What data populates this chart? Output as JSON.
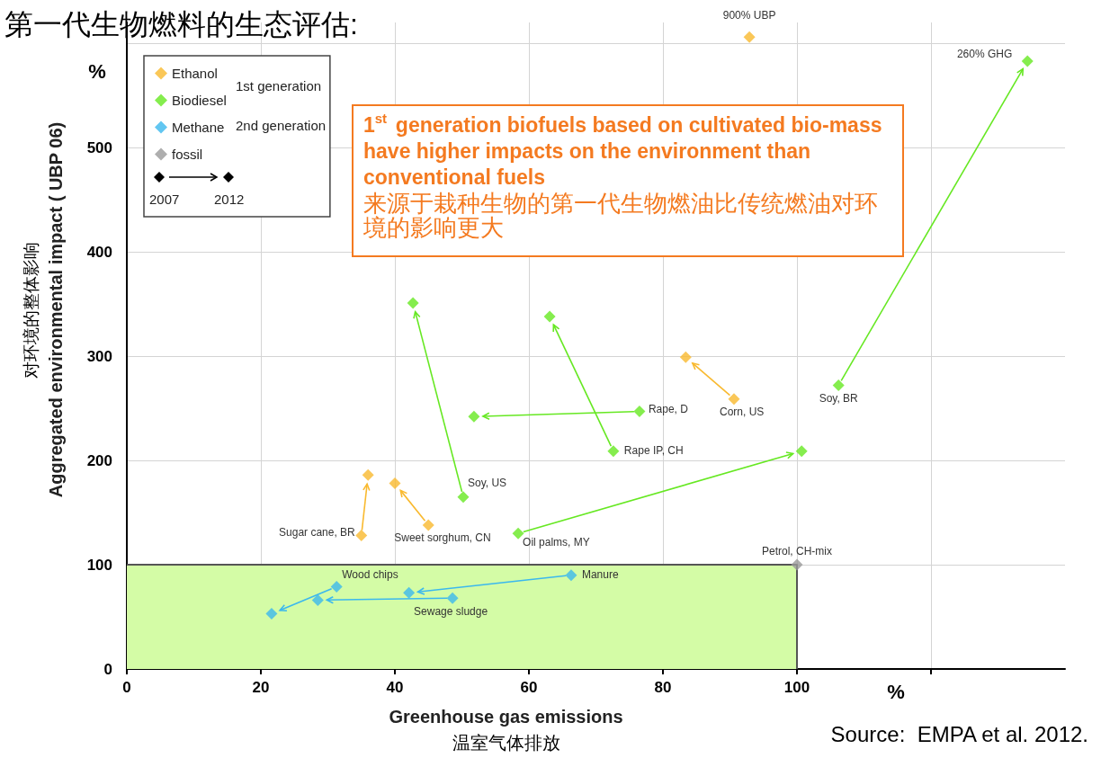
{
  "chart_data": {
    "type": "scatter",
    "title": "第一代生物燃料的生态评估:",
    "xlabel": "Greenhouse gas emissions\n温室气体排放",
    "ylabel": "对环境的整体影响\nAggregated environmental impact ( UBP 06)",
    "xlim": [
      0,
      140
    ],
    "xticks": [
      0,
      20,
      40,
      60,
      80,
      100,
      {
        "value": 120,
        "label": null
      }
    ],
    "ylim": [
      0,
      620
    ],
    "yticks": [
      0,
      100,
      200,
      300,
      400,
      500,
      {
        "value": 600,
        "label": null
      }
    ],
    "grid": true,
    "legend": "top left",
    "marker": "diamond",
    "series": [
      {
        "type": "area",
        "marker": "none",
        "color": "#d4fca6",
        "x": [
          0,
          100,
          100
        ],
        "values": [
          100,
          100,
          0
        ]
      },
      {
        "name": "Ethanol",
        "color": "#f9b92e",
        "x": [
          35.0,
          36.0,
          45.0,
          40.0,
          90.6,
          83.4,
          92.9
        ],
        "values": [
          128,
          186,
          138,
          178,
          259,
          299,
          606
        ]
      },
      {
        "name": "Biodiesel",
        "color": "#66e822",
        "x": [
          50.2,
          42.7,
          72.6,
          63.1,
          76.5,
          51.8,
          58.4,
          100.7,
          106.2,
          134.4
        ],
        "values": [
          165,
          351,
          209,
          338,
          247,
          242,
          130,
          209,
          272,
          583
        ]
      },
      {
        "name": "Methane",
        "color": "#3bb8ee",
        "x": [
          66.3,
          42.1,
          48.6,
          28.5,
          31.3,
          21.6
        ],
        "values": [
          90,
          73,
          68,
          66,
          79,
          53
        ]
      },
      {
        "name": "fossil",
        "color": "#9a9a9a",
        "x": [
          100
        ],
        "values": [
          100
        ]
      }
    ],
    "annotations": [
      "1$^{st}$ generation biofuels based on cultivated bio-mass have higher impacts on the environment than conventional fuels",
      "来源于栽种生物的第一代生物燃油比传统燃油对环境的影响更大",
      "Source:  EMPA et al. 2012.",
      "%",
      "%",
      "1st generation",
      "2nd generation",
      "2007",
      "2012",
      {
        "text": "Sugar cane, BR",
        "x": 35.0,
        "y": 128
      },
      {
        "text": "Sweet sorghum, CN",
        "x": 45.0,
        "y": 138
      },
      {
        "text": "Corn, US",
        "x": 90.6,
        "y": 259
      },
      {
        "text": "900% UBP",
        "x": 92.9,
        "y": 606
      },
      {
        "text": "Soy, US",
        "x": 50.2,
        "y": 165
      },
      {
        "text": "Rape IP, CH",
        "x": 72.6,
        "y": 209
      },
      {
        "text": "Rape, D",
        "x": 76.5,
        "y": 247
      },
      {
        "text": "Oil palms, MY",
        "x": 58.4,
        "y": 130
      },
      {
        "text": "Soy, BR",
        "x": 106.2,
        "y": 272
      },
      {
        "text": "260% GHG",
        "x": 134.4,
        "y": 583
      },
      {
        "text": "Manure",
        "x": 66.3,
        "y": 90
      },
      {
        "text": "Sewage sludge",
        "x": 48.6,
        "y": 68
      },
      {
        "text": "Wood chips",
        "x": 31.3,
        "y": 79
      },
      {
        "text": "Petrol, CH-mix",
        "x": 100,
        "y": 100
      }
    ]
  }
}
